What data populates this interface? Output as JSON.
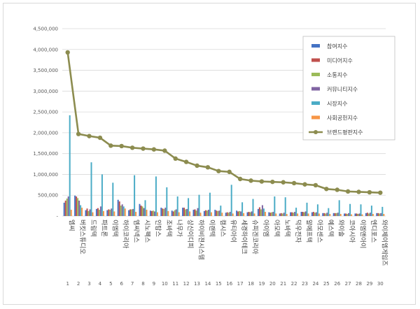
{
  "chart_data": {
    "type": "bar",
    "title": "",
    "xlabel": "",
    "ylabel": "",
    "ylim": [
      0,
      4500000
    ],
    "yticks": [
      0,
      500000,
      1000000,
      1500000,
      2000000,
      2500000,
      3000000,
      3500000,
      4000000,
      4500000
    ],
    "ytick_labels": [
      "-",
      "500,000",
      "1,000,000",
      "1,500,000",
      "2,000,000",
      "2,500,000",
      "3,000,000",
      "3,500,000",
      "4,000,000",
      "4,500,000"
    ],
    "grid": true,
    "legend_position": "top-right",
    "categories": [
      "엠씨",
      "버킷스튜디오",
      "드림텍",
      "파트론",
      "이엠텍",
      "하이코리아",
      "엠씨넥스",
      "시노펙스",
      "인탑스",
      "조바텍",
      "나무가",
      "상신이디피",
      "하이비젼시스템",
      "이랜텍",
      "캠시스",
      "유티아이",
      "세경하이테크",
      "슈피겐코리아",
      "아이엠",
      "아모텍",
      "노바텍",
      "덕우전자",
      "알에프텍",
      "아모센스",
      "예스텍",
      "와이솔",
      "코아시아",
      "이엠앤아이",
      "엔디포스",
      "와이제이엠게임즈"
    ],
    "ranks": [
      "1",
      "2",
      "3",
      "4",
      "5",
      "6",
      "7",
      "8",
      "9",
      "10",
      "11",
      "12",
      "13",
      "14",
      "15",
      "16",
      "17",
      "18",
      "19",
      "20",
      "21",
      "22",
      "23",
      "24",
      "25",
      "26",
      "27",
      "28",
      "29",
      "30"
    ],
    "series": [
      {
        "name": "참여지수",
        "type": "bar",
        "color": "#4472c4",
        "values": [
          320000,
          490000,
          140000,
          170000,
          140000,
          390000,
          140000,
          290000,
          130000,
          200000,
          130000,
          200000,
          150000,
          120000,
          150000,
          80000,
          130000,
          90000,
          170000,
          90000,
          60000,
          90000,
          100000,
          90000,
          70000,
          70000,
          60000,
          60000,
          70000,
          70000
        ]
      },
      {
        "name": "미디어지수",
        "type": "bar",
        "color": "#c0504d",
        "values": [
          370000,
          470000,
          180000,
          190000,
          160000,
          350000,
          160000,
          250000,
          120000,
          180000,
          110000,
          200000,
          160000,
          140000,
          130000,
          90000,
          110000,
          100000,
          210000,
          80000,
          70000,
          90000,
          100000,
          100000,
          70000,
          70000,
          60000,
          60000,
          80000,
          70000
        ]
      },
      {
        "name": "소통지수",
        "type": "bar",
        "color": "#9bbb59",
        "values": [
          420000,
          430000,
          120000,
          150000,
          150000,
          250000,
          160000,
          230000,
          130000,
          170000,
          140000,
          160000,
          130000,
          130000,
          120000,
          80000,
          120000,
          90000,
          160000,
          90000,
          60000,
          80000,
          90000,
          80000,
          60000,
          70000,
          50000,
          50000,
          60000,
          60000
        ]
      },
      {
        "name": "커뮤니티지수",
        "type": "bar",
        "color": "#8064a2",
        "values": [
          470000,
          370000,
          160000,
          230000,
          180000,
          280000,
          170000,
          190000,
          110000,
          200000,
          160000,
          170000,
          190000,
          150000,
          130000,
          100000,
          110000,
          110000,
          260000,
          100000,
          80000,
          100000,
          110000,
          90000,
          80000,
          80000,
          70000,
          60000,
          80000,
          70000
        ]
      },
      {
        "name": "시장지수",
        "type": "bar",
        "color": "#4bacc6",
        "values": [
          2420000,
          260000,
          1290000,
          1000000,
          800000,
          230000,
          980000,
          380000,
          950000,
          690000,
          470000,
          430000,
          510000,
          560000,
          250000,
          750000,
          330000,
          410000,
          180000,
          470000,
          450000,
          200000,
          320000,
          280000,
          190000,
          380000,
          290000,
          280000,
          250000,
          220000
        ]
      },
      {
        "name": "사회공헌지수",
        "type": "bar",
        "color": "#f79646",
        "values": [
          150000,
          200000,
          90000,
          120000,
          110000,
          180000,
          100000,
          150000,
          90000,
          120000,
          90000,
          110000,
          80000,
          90000,
          80000,
          60000,
          70000,
          60000,
          100000,
          60000,
          50000,
          60000,
          60000,
          60000,
          50000,
          50000,
          40000,
          40000,
          50000,
          50000
        ]
      },
      {
        "name": "브랜드평판지수",
        "type": "line",
        "color": "#8c8c4f",
        "values": [
          3930000,
          1970000,
          1920000,
          1880000,
          1690000,
          1680000,
          1640000,
          1620000,
          1600000,
          1570000,
          1380000,
          1300000,
          1210000,
          1170000,
          1080000,
          1060000,
          890000,
          850000,
          830000,
          820000,
          810000,
          790000,
          760000,
          740000,
          650000,
          630000,
          590000,
          580000,
          570000,
          560000
        ]
      }
    ]
  }
}
